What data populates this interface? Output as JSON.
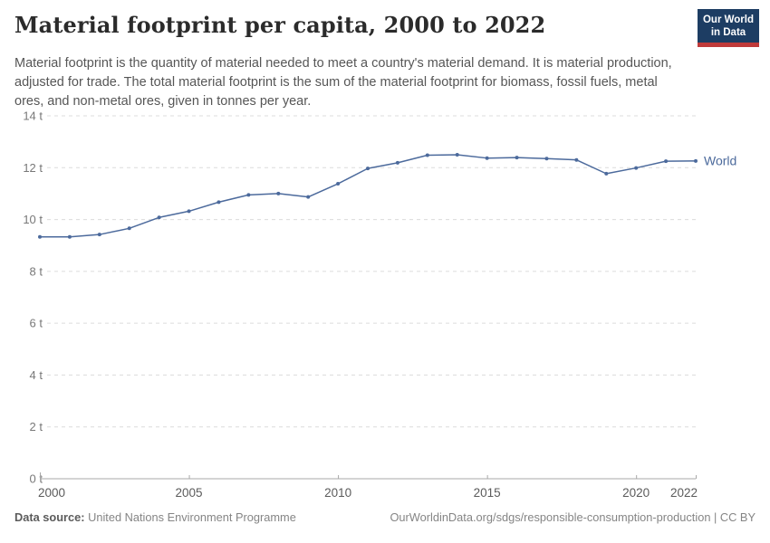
{
  "header": {
    "title": "Material footprint per capita, 2000 to 2022",
    "subtitle": "Material footprint is the quantity of material needed to meet a country's material demand. It is material production, adjusted for trade. The total material footprint is the sum of the material footprint for biomass, fossil fuels, metal ores, and non-metal ores, given in tonnes per year."
  },
  "logo": {
    "line1": "Our World",
    "line2": "in Data",
    "bg_color": "#1d3d63",
    "accent_color": "#c03a3a"
  },
  "chart_data": {
    "type": "line",
    "title": "Material footprint per capita, 2000 to 2022",
    "x": [
      2000,
      2001,
      2002,
      2003,
      2004,
      2005,
      2006,
      2007,
      2008,
      2009,
      2010,
      2011,
      2012,
      2013,
      2014,
      2015,
      2016,
      2017,
      2018,
      2019,
      2020,
      2021,
      2022
    ],
    "series": [
      {
        "name": "World",
        "color": "#4C6A9C",
        "values": [
          9.33,
          9.33,
          9.42,
          9.66,
          10.08,
          10.32,
          10.67,
          10.95,
          11.0,
          10.87,
          11.38,
          11.97,
          12.19,
          12.48,
          12.5,
          12.37,
          12.39,
          12.35,
          12.3,
          11.77,
          11.99,
          12.25,
          12.26
        ]
      }
    ],
    "xlabel": "",
    "ylabel": "",
    "unit": "t",
    "ylim": [
      0,
      14
    ],
    "ytick_values": [
      0,
      2,
      4,
      6,
      8,
      10,
      12,
      14
    ],
    "ytick_labels": [
      "0 t",
      "2 t",
      "4 t",
      "6 t",
      "8 t",
      "10 t",
      "12 t",
      "14 t"
    ],
    "xtick_values": [
      2000,
      2005,
      2010,
      2015,
      2020,
      2022
    ],
    "xtick_labels": [
      "2000",
      "2005",
      "2010",
      "2015",
      "2020",
      "2022"
    ],
    "grid": "dashed-horizontal",
    "legend_position": "end-of-line"
  },
  "footer": {
    "datasource_label": "Data source:",
    "datasource_value": "United Nations Environment Programme",
    "attribution": "OurWorldinData.org/sdgs/responsible-consumption-production | CC BY"
  }
}
